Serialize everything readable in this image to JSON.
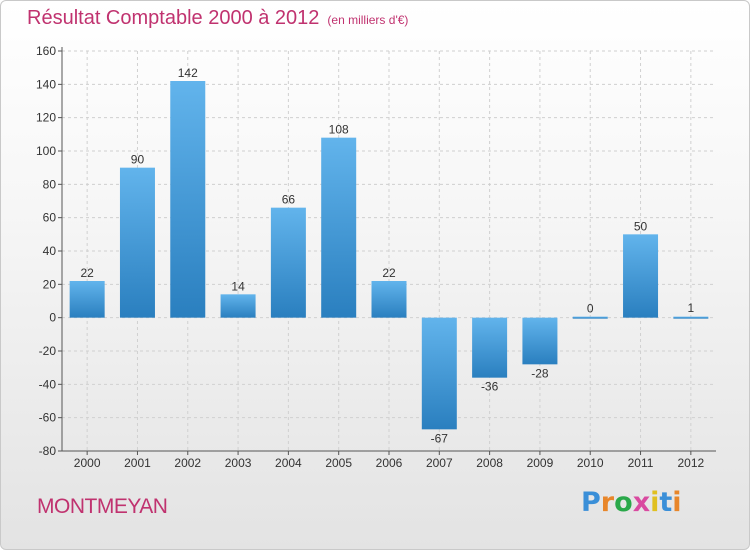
{
  "header": {
    "title": "Résultat Comptable 2000 à 2012",
    "unit": "(en milliers d'€)"
  },
  "commune": "MONTMEYAN",
  "brand": {
    "letters": [
      "P",
      "r",
      "o",
      "x",
      "i",
      "t",
      "i"
    ],
    "colors": [
      "#3a8fd8",
      "#e8862a",
      "#2aa84a",
      "#d94aa0",
      "#e0c020",
      "#3a8fd8",
      "#e8862a"
    ]
  },
  "colors": {
    "bar_light": "#62b4ec",
    "bar_dark": "#2a7fbf",
    "grid": "#d0d0d0",
    "axis": "#555555",
    "title": "#c0326f"
  },
  "chart_data": {
    "type": "bar",
    "title": "Résultat Comptable 2000 à 2012",
    "ylabel": "en milliers d'€",
    "xlabel": "",
    "categories": [
      "2000",
      "2001",
      "2002",
      "2003",
      "2004",
      "2005",
      "2006",
      "2007",
      "2008",
      "2009",
      "2010",
      "2011",
      "2012"
    ],
    "values": [
      22,
      90,
      142,
      14,
      66,
      108,
      22,
      -67,
      -36,
      -28,
      0,
      50,
      1
    ],
    "yticks": [
      160,
      140,
      120,
      100,
      80,
      60,
      40,
      20,
      0,
      -20,
      -40,
      -60,
      -80
    ],
    "ylim": [
      -80,
      160
    ],
    "grid": true
  }
}
